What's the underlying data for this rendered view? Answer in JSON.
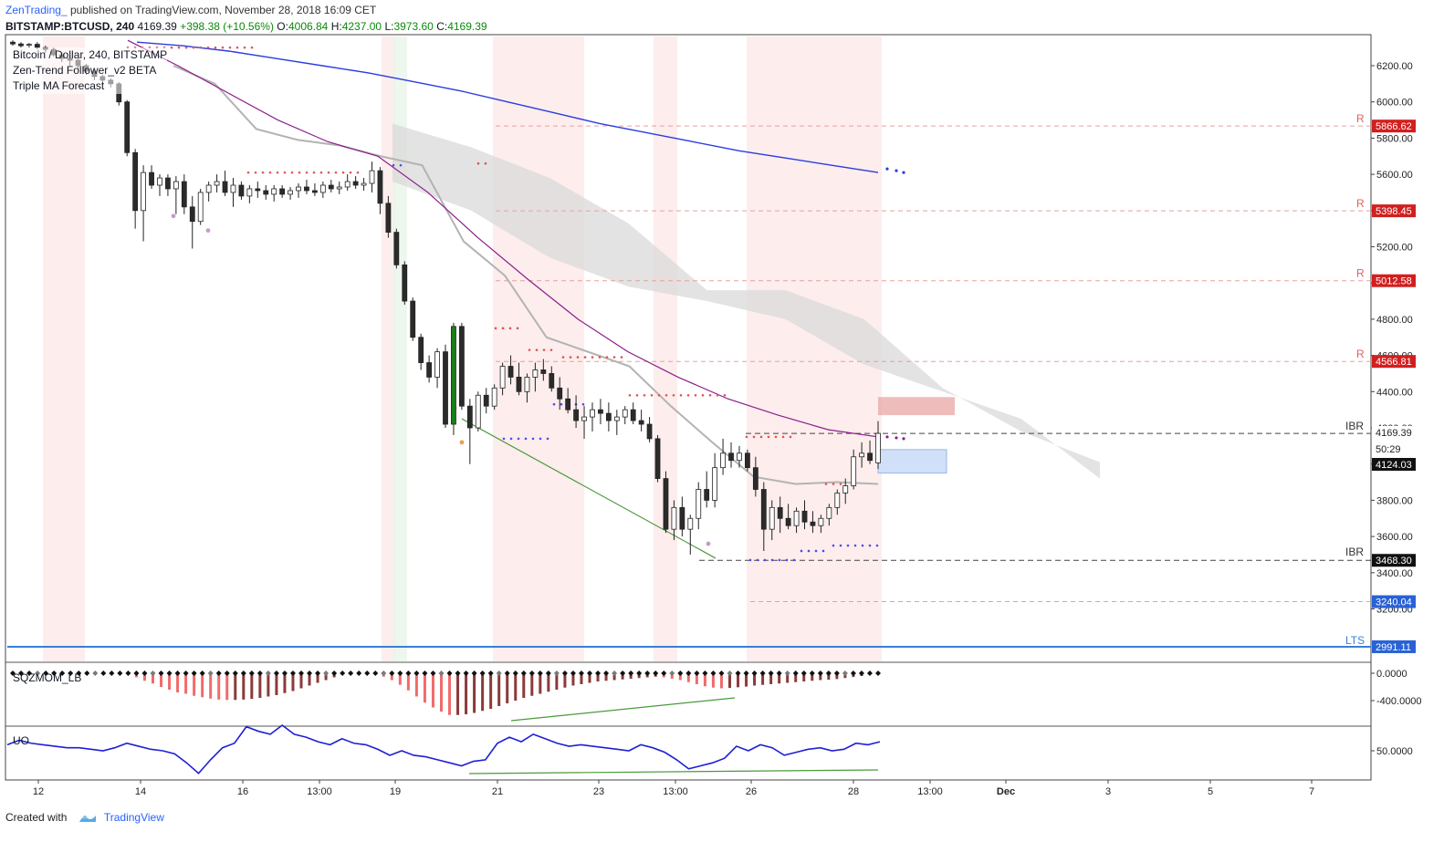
{
  "header": {
    "author": "ZenTrading_",
    "published": "published on TradingView.com, November 28, 2018 16:09 CET"
  },
  "ohlc": {
    "symbol": "BITSTAMP:BTCUSD, 240",
    "last": "4169.39",
    "change": "+398.38 (+10.56%)",
    "o_label": "O:",
    "o": "4006.84",
    "h_label": "H:",
    "h": "4237.00",
    "l_label": "L:",
    "l": "3973.60",
    "c_label": "C:",
    "c": "4169.39"
  },
  "legend": {
    "series": "Bitcoin / Dollar, 240, BITSTAMP",
    "ind1": "Zen-Trend Follower_v2 BETA",
    "ind2": "Triple MA Forecast"
  },
  "panes": {
    "sqz_label": "SQZMOM_LB",
    "uo_label": "UO"
  },
  "footer": {
    "created": "Created with",
    "brand": "TradingView"
  },
  "colors": {
    "up": "#ffffff",
    "down": "#2b2b2b",
    "green_candle": "#1a7f1a",
    "ma_slow": "#2a3de0",
    "ma_mid": "#8a1e8a",
    "trail": "#b3b3b3",
    "resistance": "#e05555",
    "support": "#4d4df0",
    "squeeze_light": "#f06b6b",
    "squeeze_dark": "#8b3a3a",
    "uo": "#1f1fd6",
    "divergence": "#4a9a3a"
  },
  "chart_data": [
    {
      "type": "candlestick",
      "title": "Bitcoin / Dollar, 240, BITSTAMP",
      "ylim": [
        3000,
        6350
      ],
      "y_ticks": [
        6200,
        6000,
        5800,
        5600,
        5400,
        5200,
        5000,
        4800,
        4600,
        4400,
        4200,
        4000,
        3800,
        3600,
        3400,
        3200
      ],
      "x_tick_labels": [
        "12",
        "14",
        "16",
        "13:00",
        "19",
        "21",
        "23",
        "13:00",
        "26",
        "28",
        "13:00",
        "Dec",
        "3",
        "5",
        "7"
      ],
      "price_labels": [
        {
          "text": "5866.62",
          "value": 5866.62,
          "kind": "resistance",
          "tag": "R"
        },
        {
          "text": "5398.45",
          "value": 5398.45,
          "kind": "resistance",
          "tag": "R"
        },
        {
          "text": "5012.58",
          "value": 5012.58,
          "kind": "resistance",
          "tag": "R"
        },
        {
          "text": "4566.81",
          "value": 4566.81,
          "kind": "resistance",
          "tag": "R"
        },
        {
          "text": "4169.39",
          "value": 4169.39,
          "kind": "last"
        },
        {
          "text": "50:29",
          "value": 4120,
          "kind": "countdown"
        },
        {
          "text": "4124.03",
          "value": 4124.03,
          "kind": "ma"
        },
        {
          "text": "3468.30",
          "value": 3468.3,
          "kind": "ibr",
          "tag": "IBR"
        },
        {
          "text": "3240.04",
          "value": 3240.04,
          "kind": "support"
        },
        {
          "text": "2991.11",
          "value": 2991.11,
          "kind": "lts",
          "tag": "LTS"
        }
      ],
      "ibr_upper_tag": "IBR",
      "candles": [
        [
          6330,
          6340,
          6310,
          6320
        ],
        [
          6320,
          6330,
          6300,
          6310
        ],
        [
          6315,
          6325,
          6300,
          6318
        ],
        [
          6318,
          6330,
          6290,
          6300
        ],
        [
          6300,
          6310,
          6270,
          6290
        ],
        [
          6290,
          6300,
          6250,
          6260
        ],
        [
          6260,
          6275,
          6220,
          6240
        ],
        [
          6240,
          6260,
          6200,
          6230
        ],
        [
          6230,
          6240,
          6180,
          6200
        ],
        [
          6200,
          6210,
          6150,
          6170
        ],
        [
          6170,
          6180,
          6120,
          6140
        ],
        [
          6140,
          6150,
          6100,
          6120
        ],
        [
          6120,
          6130,
          6080,
          6100
        ],
        [
          6100,
          6110,
          5980,
          6000
        ],
        [
          6000,
          6010,
          5700,
          5720
        ],
        [
          5720,
          5740,
          5300,
          5400
        ],
        [
          5400,
          5650,
          5230,
          5610
        ],
        [
          5610,
          5650,
          5520,
          5540
        ],
        [
          5540,
          5600,
          5480,
          5580
        ],
        [
          5580,
          5600,
          5480,
          5520
        ],
        [
          5520,
          5590,
          5380,
          5560
        ],
        [
          5560,
          5600,
          5380,
          5420
        ],
        [
          5420,
          5480,
          5190,
          5340
        ],
        [
          5340,
          5520,
          5320,
          5500
        ],
        [
          5500,
          5560,
          5450,
          5540
        ],
        [
          5540,
          5600,
          5500,
          5560
        ],
        [
          5560,
          5620,
          5480,
          5500
        ],
        [
          5500,
          5580,
          5420,
          5540
        ],
        [
          5540,
          5560,
          5460,
          5480
        ],
        [
          5480,
          5540,
          5440,
          5520
        ],
        [
          5520,
          5560,
          5470,
          5510
        ],
        [
          5510,
          5540,
          5460,
          5490
        ],
        [
          5490,
          5540,
          5450,
          5520
        ],
        [
          5520,
          5540,
          5470,
          5490
        ],
        [
          5490,
          5530,
          5460,
          5510
        ],
        [
          5510,
          5550,
          5470,
          5530
        ],
        [
          5530,
          5570,
          5490,
          5510
        ],
        [
          5510,
          5550,
          5480,
          5500
        ],
        [
          5500,
          5560,
          5470,
          5540
        ],
        [
          5540,
          5570,
          5500,
          5520
        ],
        [
          5520,
          5560,
          5490,
          5530
        ],
        [
          5530,
          5600,
          5510,
          5560
        ],
        [
          5560,
          5590,
          5520,
          5540
        ],
        [
          5540,
          5580,
          5510,
          5550
        ],
        [
          5550,
          5670,
          5500,
          5620
        ],
        [
          5620,
          5640,
          5380,
          5440
        ],
        [
          5440,
          5480,
          5250,
          5280
        ],
        [
          5280,
          5300,
          5080,
          5100
        ],
        [
          5100,
          5120,
          4880,
          4900
        ],
        [
          4900,
          4920,
          4680,
          4700
        ],
        [
          4700,
          4720,
          4520,
          4560
        ],
        [
          4560,
          4600,
          4450,
          4480
        ],
        [
          4480,
          4640,
          4420,
          4620
        ],
        [
          4620,
          4660,
          4200,
          4220
        ],
        [
          4220,
          4780,
          4160,
          4760
        ],
        [
          4760,
          4780,
          4300,
          4320
        ],
        [
          4320,
          4360,
          4000,
          4200
        ],
        [
          4200,
          4400,
          4180,
          4380
        ],
        [
          4380,
          4420,
          4280,
          4320
        ],
        [
          4320,
          4440,
          4300,
          4420
        ],
        [
          4420,
          4560,
          4380,
          4540
        ],
        [
          4540,
          4600,
          4440,
          4480
        ],
        [
          4480,
          4560,
          4380,
          4400
        ],
        [
          4400,
          4500,
          4340,
          4480
        ],
        [
          4480,
          4560,
          4400,
          4520
        ],
        [
          4520,
          4580,
          4460,
          4500
        ],
        [
          4500,
          4540,
          4400,
          4420
        ],
        [
          4420,
          4480,
          4300,
          4360
        ],
        [
          4360,
          4420,
          4280,
          4300
        ],
        [
          4300,
          4380,
          4200,
          4240
        ],
        [
          4240,
          4320,
          4140,
          4260
        ],
        [
          4260,
          4340,
          4180,
          4300
        ],
        [
          4300,
          4360,
          4220,
          4280
        ],
        [
          4280,
          4340,
          4180,
          4240
        ],
        [
          4240,
          4300,
          4160,
          4260
        ],
        [
          4260,
          4320,
          4220,
          4300
        ],
        [
          4300,
          4340,
          4220,
          4240
        ],
        [
          4240,
          4300,
          4180,
          4220
        ],
        [
          4220,
          4260,
          4120,
          4140
        ],
        [
          4140,
          4160,
          3900,
          3920
        ],
        [
          3920,
          3960,
          3620,
          3640
        ],
        [
          3640,
          3800,
          3580,
          3760
        ],
        [
          3760,
          3820,
          3600,
          3640
        ],
        [
          3640,
          3720,
          3500,
          3700
        ],
        [
          3700,
          3900,
          3640,
          3860
        ],
        [
          3860,
          3960,
          3760,
          3800
        ],
        [
          3800,
          4060,
          3760,
          3980
        ],
        [
          3980,
          4140,
          3940,
          4060
        ],
        [
          4060,
          4120,
          3980,
          4020
        ],
        [
          4020,
          4100,
          3980,
          4060
        ],
        [
          4060,
          4080,
          3960,
          3980
        ],
        [
          3980,
          4040,
          3820,
          3860
        ],
        [
          3860,
          3900,
          3520,
          3640
        ],
        [
          3640,
          3800,
          3580,
          3760
        ],
        [
          3760,
          3820,
          3620,
          3700
        ],
        [
          3700,
          3780,
          3640,
          3660
        ],
        [
          3660,
          3760,
          3620,
          3740
        ],
        [
          3740,
          3800,
          3640,
          3680
        ],
        [
          3680,
          3740,
          3620,
          3660
        ],
        [
          3660,
          3720,
          3620,
          3700
        ],
        [
          3700,
          3780,
          3660,
          3760
        ],
        [
          3760,
          3860,
          3720,
          3840
        ],
        [
          3840,
          3920,
          3780,
          3880
        ],
        [
          3880,
          4080,
          3860,
          4040
        ],
        [
          4040,
          4120,
          3980,
          4060
        ],
        [
          4060,
          4130,
          4000,
          4020
        ],
        [
          4006.84,
          4237,
          3973.6,
          4169.39
        ]
      ],
      "ma_slow": [
        6330,
        6310,
        6280,
        6240,
        6200,
        6160,
        6110,
        6060,
        6000,
        5940,
        5880,
        5830,
        5780,
        5730,
        5690,
        5650,
        5610
      ],
      "ma_mid": [
        6340,
        6200,
        6050,
        5900,
        5780,
        5700,
        5500,
        5250,
        5020,
        4800,
        4620,
        4480,
        4360,
        4270,
        4190,
        4150
      ],
      "trail_stop": [
        6200,
        6100,
        5850,
        5790,
        5760,
        5700,
        5650,
        5230,
        5040,
        4700,
        4620,
        4540,
        4320,
        4120,
        3930,
        3890,
        3900,
        3890
      ],
      "forecast_cloud_upper": [
        5880,
        5750,
        5580,
        5330,
        4960,
        4960,
        4800,
        4420,
        4180,
        4010
      ],
      "forecast_cloud_lower": [
        5560,
        5400,
        5140,
        4980,
        4900,
        4800,
        4550,
        4400,
        4250,
        3920
      ]
    },
    {
      "type": "bar",
      "title": "SQZMOM_LB",
      "ylim": [
        -620,
        20
      ],
      "y_ticks": [
        "0.0000",
        "-400.0000"
      ],
      "values": [
        0,
        0,
        0,
        0,
        0,
        0,
        0,
        0,
        0,
        0,
        0,
        0,
        0,
        0,
        -20,
        -60,
        -110,
        -150,
        -200,
        -240,
        -280,
        -300,
        -330,
        -350,
        -370,
        -385,
        -390,
        -390,
        -385,
        -375,
        -360,
        -340,
        -320,
        -290,
        -260,
        -220,
        -180,
        -140,
        -100,
        -60,
        -20,
        0,
        0,
        0,
        -20,
        -50,
        -100,
        -170,
        -250,
        -340,
        -430,
        -500,
        -560,
        -610,
        -610,
        -600,
        -580,
        -550,
        -520,
        -480,
        -440,
        -400,
        -360,
        -330,
        -300,
        -270,
        -240,
        -210,
        -180,
        -160,
        -140,
        -120,
        -110,
        -100,
        -90,
        -80,
        -70,
        -60,
        -50,
        -60,
        -80,
        -100,
        -130,
        -160,
        -190,
        -210,
        -220,
        -215,
        -205,
        -195,
        -180,
        -170,
        -160,
        -150,
        -140,
        -130,
        -120,
        -110,
        -100,
        -95,
        -85,
        -70,
        -55,
        -40,
        -20,
        -10
      ]
    },
    {
      "type": "line",
      "title": "UO",
      "ylim": [
        20,
        80
      ],
      "y_ticks": [
        "50.0000"
      ],
      "values": [
        54,
        57,
        55,
        54,
        53,
        52,
        52,
        51,
        50,
        52,
        55,
        53,
        51,
        50,
        48,
        42,
        35,
        44,
        52,
        55,
        66,
        63,
        61,
        67,
        61,
        59,
        56,
        54,
        58,
        55,
        54,
        51,
        47,
        50,
        47,
        46,
        44,
        42,
        40,
        43,
        44,
        55,
        59,
        56,
        61,
        58,
        55,
        53,
        54,
        53,
        52,
        51,
        50,
        54,
        52,
        49,
        44,
        38,
        40,
        42,
        45,
        53,
        50,
        54,
        52,
        47,
        49,
        51,
        52,
        50,
        51,
        55,
        54,
        56
      ]
    }
  ]
}
